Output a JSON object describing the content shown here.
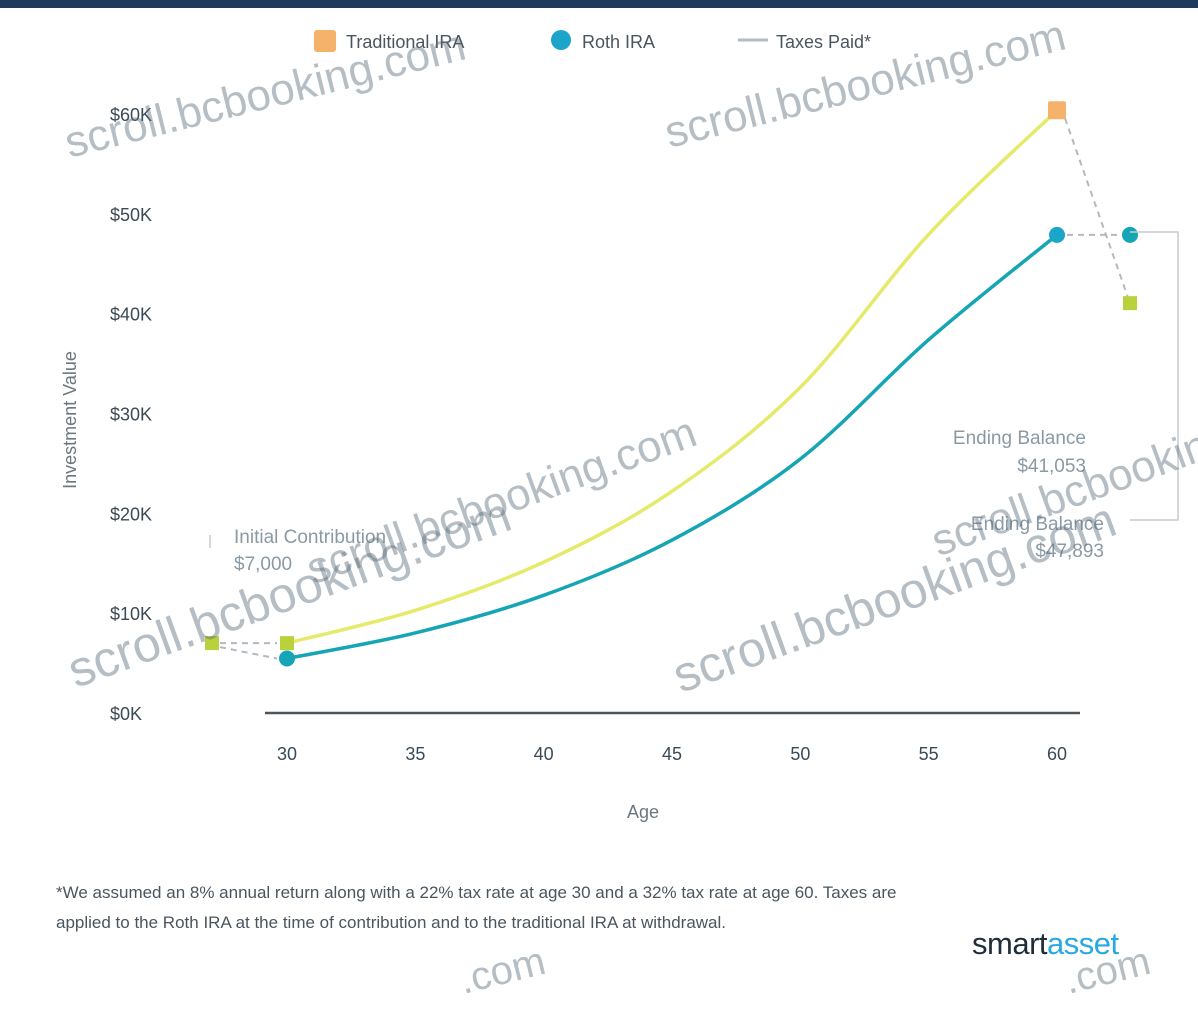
{
  "colors": {
    "top_bar": "#1f3a5f",
    "traditional": "#e6ea6a",
    "traditional_marker": "#f4b26a",
    "roth": "#16a5b4",
    "roth_marker": "#1aa5c9",
    "taxes": "#b3b9bf",
    "axis": "#4d545a"
  },
  "legend": {
    "traditional": "Traditional IRA",
    "roth": "Roth IRA",
    "taxes": "Taxes Paid*"
  },
  "annotations": {
    "initial_title": "Initial Contribution",
    "initial_value": "$7,000",
    "ending_trad_title": "Ending Balance",
    "ending_trad_value": "$41,053",
    "ending_roth_title": "Ending Balance",
    "ending_roth_value": "$47,893"
  },
  "footnote": "*We assumed an 8% annual return along with a 22% tax rate at age 30 and a 32% tax rate at age 60. Taxes are applied to the Roth IRA at the time of contribution and to the traditional IRA at withdrawal.",
  "brand": {
    "part1": "smart",
    "part2": "asset"
  },
  "watermarks": [
    "scroll.bcbooking.com",
    "scroll.bcbooking.com",
    "scroll.bcbooking.com",
    "scroll.bcbooking.com",
    "scroll.bcbooking.com",
    "scroll.bcbooking.com",
    ".com",
    ".com"
  ],
  "chart_data": {
    "type": "line",
    "xlabel": "Age",
    "ylabel": "Investment Value",
    "x": [
      30,
      35,
      40,
      45,
      50,
      55,
      60
    ],
    "xlim": [
      30,
      60
    ],
    "ylim": [
      0,
      60000
    ],
    "y_ticks": [
      0,
      10000,
      20000,
      30000,
      40000,
      50000,
      60000
    ],
    "y_tick_labels": [
      "$0K",
      "$10K",
      "$20K",
      "$30K",
      "$40K",
      "$50K",
      "$60K"
    ],
    "x_tick_labels": [
      "30",
      "35",
      "40",
      "45",
      "50",
      "55",
      "60"
    ],
    "series": [
      {
        "name": "Traditional IRA",
        "values": [
          7000,
          10285,
          15112,
          22204,
          32625,
          47937,
          60375
        ]
      },
      {
        "name": "Roth IRA",
        "values": [
          5460,
          8022,
          11787,
          17319,
          25447,
          37390,
          47893
        ]
      }
    ],
    "taxes_paid": {
      "initial": {
        "age": 30,
        "before": 7000,
        "after": 5460
      },
      "ending": {
        "age": 60,
        "before": 60375,
        "after": 41053
      }
    },
    "legend_position": "top",
    "grid": false
  }
}
